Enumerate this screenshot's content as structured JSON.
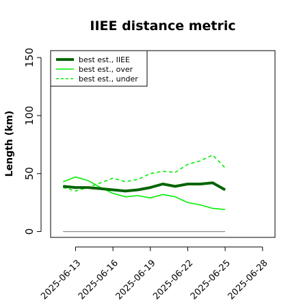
{
  "chart_data": {
    "type": "line",
    "title": "IIEE distance metric",
    "xlabel": "",
    "ylabel": "Length (km)",
    "x_ticks": [
      "2025-06-13",
      "2025-06-16",
      "2025-06-19",
      "2025-06-22",
      "2025-06-25",
      "2025-06-28"
    ],
    "y_ticks": [
      0,
      50,
      100,
      150
    ],
    "xlim": [
      "2025-06-11",
      "2025-06-29"
    ],
    "ylim": [
      -5,
      156
    ],
    "x": [
      "2025-06-12",
      "2025-06-13",
      "2025-06-14",
      "2025-06-15",
      "2025-06-16",
      "2025-06-17",
      "2025-06-18",
      "2025-06-19",
      "2025-06-20",
      "2025-06-21",
      "2025-06-22",
      "2025-06-23",
      "2025-06-24",
      "2025-06-25"
    ],
    "series": [
      {
        "name": "best est., IIEE",
        "color": "#006400",
        "style": "solid-thick",
        "values": [
          39,
          38,
          38,
          37,
          36,
          35,
          36,
          38,
          41,
          39,
          41,
          41,
          42,
          36
        ]
      },
      {
        "name": "best est., over",
        "color": "#00ee00",
        "style": "solid",
        "values": [
          43,
          47,
          44,
          38,
          33,
          30,
          31,
          29,
          32,
          30,
          25,
          23,
          20,
          19
        ]
      },
      {
        "name": "best est., under",
        "color": "#00ee00",
        "style": "dashed",
        "values": [
          38,
          35,
          38,
          42,
          46,
          43,
          45,
          50,
          52,
          51,
          58,
          61,
          66,
          55
        ]
      },
      {
        "name": "",
        "color": "#888888",
        "style": "solid-thin",
        "values": [
          0,
          0,
          0,
          0,
          0,
          0,
          0,
          0,
          0,
          0,
          0,
          0,
          0,
          0
        ]
      }
    ],
    "grid": false,
    "legend_position": "top-left"
  }
}
